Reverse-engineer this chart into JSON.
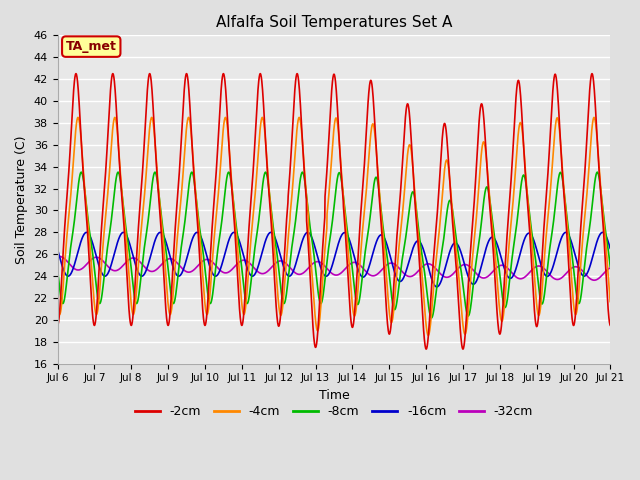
{
  "title": "Alfalfa Soil Temperatures Set A",
  "xlabel": "Time",
  "ylabel": "Soil Temperature (C)",
  "ylim": [
    16,
    46
  ],
  "yticks": [
    16,
    18,
    20,
    22,
    24,
    26,
    28,
    30,
    32,
    34,
    36,
    38,
    40,
    42,
    44,
    46
  ],
  "xtick_labels": [
    "Jul 6",
    "Jul 7",
    "Jul 8",
    "Jul 9",
    "Jul 10",
    "Jul 11",
    "Jul 12",
    "Jul 13",
    "Jul 14",
    "Jul 15",
    "Jul 16",
    "Jul 17",
    "Jul 18",
    "Jul 19",
    "Jul 20",
    "Jul 21"
  ],
  "series": {
    "-2cm": {
      "color": "#dd0000",
      "lw": 1.2
    },
    "-4cm": {
      "color": "#ff8800",
      "lw": 1.2
    },
    "-8cm": {
      "color": "#00bb00",
      "lw": 1.2
    },
    "-16cm": {
      "color": "#0000cc",
      "lw": 1.2
    },
    "-32cm": {
      "color": "#bb00bb",
      "lw": 1.2
    }
  },
  "legend_label": "TA_met",
  "legend_box_color": "#ffff99",
  "legend_box_edge": "#cc0000",
  "bg_color": "#e0e0e0",
  "plot_bg_color": "#e8e8e8",
  "grid_color": "#ffffff",
  "n_days": 15,
  "pts_per_day": 144
}
